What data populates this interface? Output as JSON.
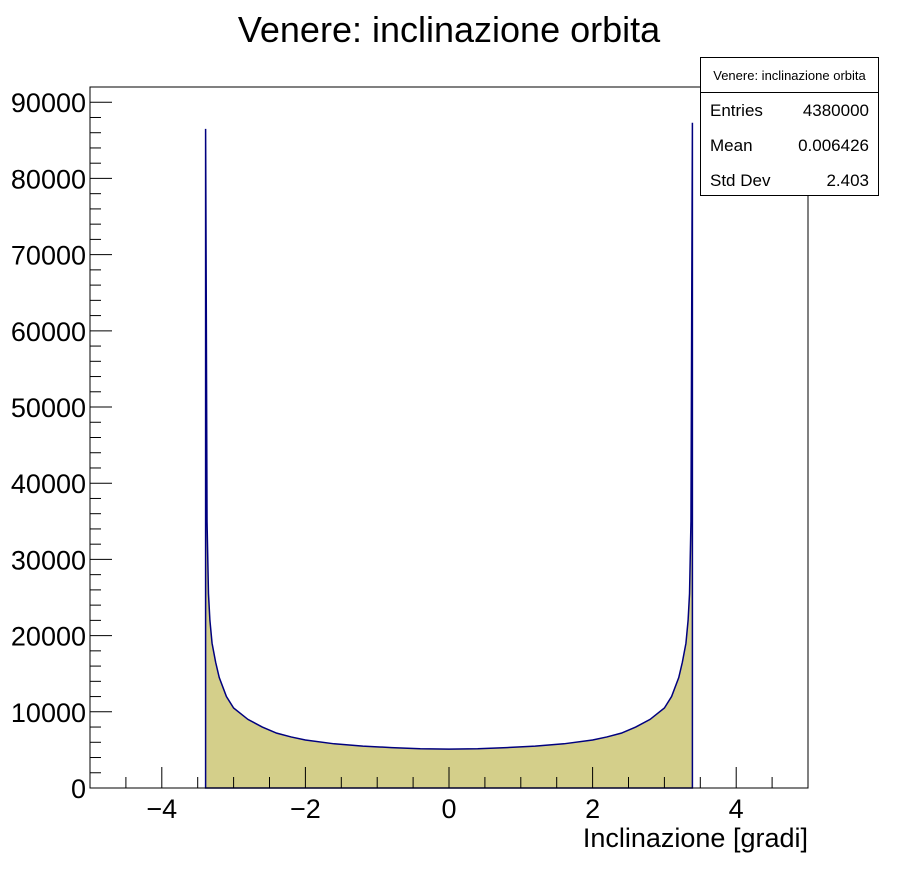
{
  "chart_data": {
    "type": "histogram",
    "title": "Venere: inclinazione orbita",
    "xlabel": "Inclinazione [gradi]",
    "ylabel": "",
    "xlim": [
      -5,
      5
    ],
    "ylim": [
      0,
      92000
    ],
    "xticks": [
      -4,
      -2,
      0,
      2,
      4
    ],
    "xtick_labels": [
      "−4",
      "−2",
      "0",
      "2",
      "4"
    ],
    "yticks": [
      0,
      10000,
      20000,
      30000,
      40000,
      50000,
      60000,
      70000,
      80000,
      90000
    ],
    "ytick_labels": [
      "0",
      "10000",
      "20000",
      "30000",
      "40000",
      "50000",
      "60000",
      "70000",
      "80000",
      "90000"
    ],
    "grid": false,
    "legend": "none",
    "fill_color": "#d4cf8a",
    "line_color": "#00007f",
    "shape": {
      "description_of_curve": "arcsine-like distribution",
      "x": [
        -3.39,
        -3.38,
        -3.37,
        -3.35,
        -3.33,
        -3.3,
        -3.25,
        -3.2,
        -3.1,
        -3.0,
        -2.8,
        -2.6,
        -2.4,
        -2.2,
        -2.0,
        -1.6,
        -1.2,
        -0.8,
        -0.4,
        0.0,
        0.4,
        0.8,
        1.2,
        1.6,
        2.0,
        2.2,
        2.4,
        2.6,
        2.8,
        3.0,
        3.1,
        3.2,
        3.25,
        3.3,
        3.33,
        3.35,
        3.37,
        3.38,
        3.39
      ],
      "y": [
        86500,
        62000,
        35000,
        25500,
        22000,
        19000,
        16500,
        14500,
        12000,
        10500,
        9000,
        8000,
        7200,
        6700,
        6300,
        5800,
        5500,
        5300,
        5150,
        5100,
        5150,
        5300,
        5500,
        5800,
        6300,
        6700,
        7200,
        8000,
        9000,
        10500,
        12000,
        14500,
        16500,
        19000,
        22000,
        25500,
        35000,
        62000,
        87300
      ]
    },
    "stats": {
      "title": "Venere: inclinazione orbita",
      "rows": [
        {
          "label": "Entries",
          "value": "4380000"
        },
        {
          "label": "Mean",
          "value": "0.006426"
        },
        {
          "label": "Std Dev",
          "value": "2.403"
        }
      ]
    }
  }
}
